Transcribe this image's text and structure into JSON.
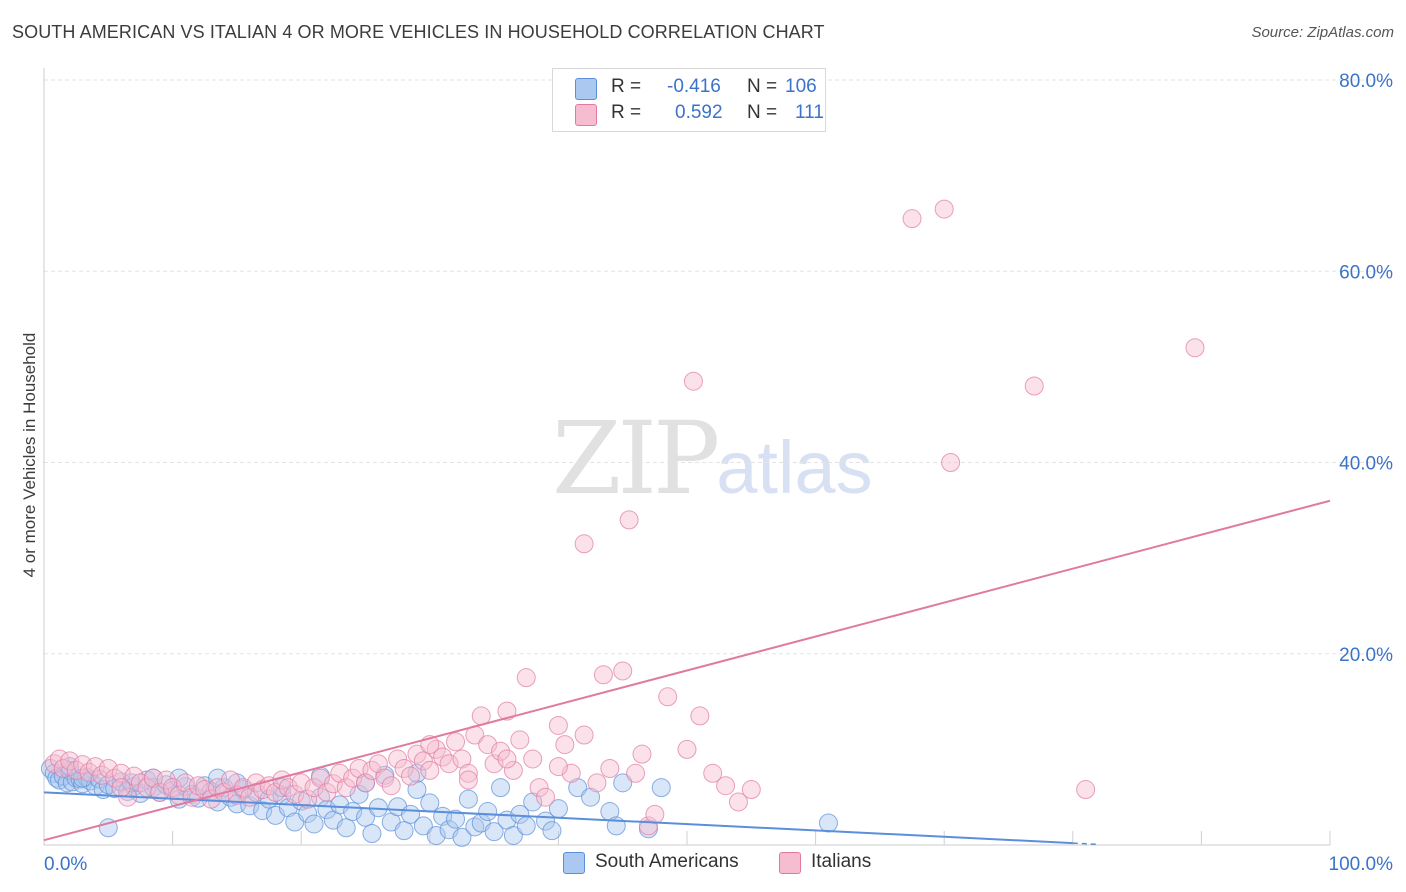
{
  "title": "SOUTH AMERICAN VS ITALIAN 4 OR MORE VEHICLES IN HOUSEHOLD CORRELATION CHART",
  "source": "Source: ZipAtlas.com",
  "watermark": {
    "zip": "ZIP",
    "atlas": "atlas"
  },
  "legend": {
    "rows": [
      {
        "r_label": "R =",
        "r_value": "-0.416",
        "n_label": "N =",
        "n_value": "106",
        "color": "#aac8f0"
      },
      {
        "r_label": "R =",
        "r_value": "0.592",
        "n_label": "N =",
        "n_value": "111",
        "color": "#f6bcd0"
      }
    ]
  },
  "bottom_legend": [
    {
      "label": "South Americans",
      "color": "#aac8f0"
    },
    {
      "label": "Italians",
      "color": "#f6bcd0"
    }
  ],
  "chart_data": {
    "type": "scatter",
    "title": "SOUTH AMERICAN VS ITALIAN 4 OR MORE VEHICLES IN HOUSEHOLD CORRELATION CHART",
    "xlabel": "",
    "ylabel": "4 or more Vehicles in Household",
    "xlim": [
      0,
      100
    ],
    "ylim": [
      0,
      80
    ],
    "x_tick_labels": [
      {
        "value": 0,
        "label": "0.0%"
      },
      {
        "value": 100,
        "label": "100.0%"
      }
    ],
    "y_tick_labels": [
      {
        "value": 20,
        "label": "20.0%"
      },
      {
        "value": 40,
        "label": "40.0%"
      },
      {
        "value": 60,
        "label": "60.0%"
      },
      {
        "value": 80,
        "label": "80.0%"
      }
    ],
    "grid": true,
    "legend_position": "top-center",
    "series": [
      {
        "name": "South Americans",
        "color": "#5b8fd9",
        "fill": "#aac8f0",
        "trend": {
          "x": [
            0,
            80
          ],
          "y": [
            5.5,
            0.2
          ]
        },
        "points": [
          [
            0.5,
            8.0
          ],
          [
            0.8,
            7.5
          ],
          [
            1.0,
            7.0
          ],
          [
            1.2,
            6.8
          ],
          [
            1.5,
            7.2
          ],
          [
            1.8,
            6.5
          ],
          [
            2.0,
            7.8
          ],
          [
            2.2,
            6.6
          ],
          [
            2.5,
            7.0
          ],
          [
            2.8,
            6.9
          ],
          [
            3.0,
            6.4
          ],
          [
            3.3,
            7.1
          ],
          [
            3.6,
            6.7
          ],
          [
            4.0,
            6.2
          ],
          [
            4.3,
            6.9
          ],
          [
            4.6,
            5.8
          ],
          [
            5.0,
            6.3
          ],
          [
            5.5,
            5.9
          ],
          [
            6.0,
            6.6
          ],
          [
            6.5,
            5.6
          ],
          [
            7.0,
            6.1
          ],
          [
            7.5,
            5.4
          ],
          [
            8.0,
            6.8
          ],
          [
            8.5,
            6.0
          ],
          [
            9.0,
            5.5
          ],
          [
            9.5,
            6.3
          ],
          [
            10.0,
            5.7
          ],
          [
            10.5,
            4.8
          ],
          [
            11.0,
            6.1
          ],
          [
            11.5,
            5.3
          ],
          [
            12.0,
            4.9
          ],
          [
            12.5,
            6.2
          ],
          [
            13.0,
            5.6
          ],
          [
            13.5,
            4.5
          ],
          [
            14.0,
            6.0
          ],
          [
            14.5,
            5.0
          ],
          [
            15.0,
            4.3
          ],
          [
            15.5,
            5.8
          ],
          [
            16.0,
            4.1
          ],
          [
            16.5,
            5.5
          ],
          [
            17.0,
            3.6
          ],
          [
            17.5,
            4.8
          ],
          [
            18.0,
            3.1
          ],
          [
            18.5,
            5.2
          ],
          [
            19.0,
            3.9
          ],
          [
            19.5,
            2.4
          ],
          [
            20.0,
            4.6
          ],
          [
            20.5,
            3.3
          ],
          [
            21.0,
            2.2
          ],
          [
            21.5,
            5.0
          ],
          [
            22.0,
            3.7
          ],
          [
            22.5,
            2.6
          ],
          [
            23.0,
            4.2
          ],
          [
            23.5,
            1.8
          ],
          [
            24.0,
            3.5
          ],
          [
            24.5,
            5.3
          ],
          [
            25.0,
            2.9
          ],
          [
            25.5,
            1.2
          ],
          [
            26.0,
            3.9
          ],
          [
            26.5,
            7.3
          ],
          [
            27.0,
            2.4
          ],
          [
            27.5,
            4.0
          ],
          [
            28.0,
            1.5
          ],
          [
            28.5,
            3.2
          ],
          [
            29.0,
            5.8
          ],
          [
            29.5,
            2.0
          ],
          [
            30.0,
            4.4
          ],
          [
            30.5,
            1.0
          ],
          [
            31.0,
            3.0
          ],
          [
            31.5,
            1.6
          ],
          [
            32.0,
            2.7
          ],
          [
            32.5,
            0.8
          ],
          [
            33.0,
            4.8
          ],
          [
            33.5,
            1.9
          ],
          [
            34.0,
            2.3
          ],
          [
            34.5,
            3.5
          ],
          [
            35.0,
            1.4
          ],
          [
            35.5,
            6.0
          ],
          [
            36.0,
            2.6
          ],
          [
            36.5,
            1.0
          ],
          [
            37.0,
            3.2
          ],
          [
            37.5,
            2.0
          ],
          [
            38.0,
            4.5
          ],
          [
            39.0,
            2.5
          ],
          [
            39.5,
            1.5
          ],
          [
            40.0,
            3.8
          ],
          [
            41.5,
            6.0
          ],
          [
            42.5,
            5.0
          ],
          [
            44.0,
            3.5
          ],
          [
            44.5,
            2.0
          ],
          [
            45.0,
            6.5
          ],
          [
            47.0,
            1.7
          ],
          [
            48.0,
            6.0
          ],
          [
            61.0,
            2.3
          ],
          [
            5.0,
            1.8
          ],
          [
            10.5,
            7.0
          ],
          [
            13.5,
            7.0
          ],
          [
            21.5,
            7.2
          ],
          [
            3.0,
            7.0
          ],
          [
            6.8,
            6.5
          ],
          [
            8.5,
            7.0
          ],
          [
            15.0,
            6.5
          ],
          [
            18.5,
            6.0
          ],
          [
            25.0,
            6.5
          ],
          [
            29.0,
            7.5
          ],
          [
            2.0,
            8.2
          ]
        ]
      },
      {
        "name": "Italians",
        "color": "#e07aa0",
        "fill": "#f6bcd0",
        "trend": {
          "x": [
            0,
            100
          ],
          "y": [
            0.5,
            36.0
          ]
        },
        "points": [
          [
            0.8,
            8.5
          ],
          [
            1.2,
            9.0
          ],
          [
            1.5,
            8.0
          ],
          [
            2.0,
            8.8
          ],
          [
            2.5,
            7.8
          ],
          [
            3.0,
            8.4
          ],
          [
            3.5,
            7.6
          ],
          [
            4.0,
            8.2
          ],
          [
            4.5,
            7.3
          ],
          [
            5.0,
            8.0
          ],
          [
            5.5,
            7.0
          ],
          [
            6.0,
            7.5
          ],
          [
            6.5,
            5.0
          ],
          [
            7.0,
            7.2
          ],
          [
            7.5,
            6.5
          ],
          [
            8.0,
            6.0
          ],
          [
            8.5,
            7.0
          ],
          [
            9.0,
            5.5
          ],
          [
            9.5,
            6.8
          ],
          [
            10.0,
            6.0
          ],
          [
            10.5,
            5.2
          ],
          [
            11.0,
            6.5
          ],
          [
            11.5,
            5.0
          ],
          [
            12.0,
            6.2
          ],
          [
            12.5,
            5.8
          ],
          [
            13.0,
            4.8
          ],
          [
            13.5,
            6.0
          ],
          [
            14.0,
            5.5
          ],
          [
            14.5,
            6.8
          ],
          [
            15.0,
            5.2
          ],
          [
            15.5,
            6.0
          ],
          [
            16.0,
            5.0
          ],
          [
            16.5,
            6.5
          ],
          [
            17.0,
            5.8
          ],
          [
            17.5,
            6.2
          ],
          [
            18.0,
            5.5
          ],
          [
            18.5,
            6.8
          ],
          [
            19.0,
            6.0
          ],
          [
            19.5,
            5.3
          ],
          [
            20.0,
            6.5
          ],
          [
            20.5,
            4.8
          ],
          [
            21.0,
            6.0
          ],
          [
            21.5,
            7.0
          ],
          [
            22.0,
            5.5
          ],
          [
            22.5,
            6.4
          ],
          [
            23.0,
            7.5
          ],
          [
            23.5,
            6.0
          ],
          [
            24.0,
            7.0
          ],
          [
            24.5,
            8.0
          ],
          [
            25.0,
            6.5
          ],
          [
            25.5,
            7.8
          ],
          [
            26.0,
            8.5
          ],
          [
            26.5,
            7.0
          ],
          [
            27.0,
            6.2
          ],
          [
            27.5,
            9.0
          ],
          [
            28.0,
            8.0
          ],
          [
            28.5,
            7.2
          ],
          [
            29.0,
            9.5
          ],
          [
            29.5,
            8.8
          ],
          [
            30.0,
            7.8
          ],
          [
            30.5,
            10.0
          ],
          [
            31.0,
            9.2
          ],
          [
            31.5,
            8.5
          ],
          [
            32.0,
            10.8
          ],
          [
            32.5,
            9.0
          ],
          [
            33.0,
            7.5
          ],
          [
            33.5,
            11.5
          ],
          [
            34.0,
            13.5
          ],
          [
            34.5,
            10.5
          ],
          [
            35.0,
            8.5
          ],
          [
            35.5,
            9.8
          ],
          [
            36.0,
            14.0
          ],
          [
            36.5,
            7.8
          ],
          [
            37.0,
            11.0
          ],
          [
            37.5,
            17.5
          ],
          [
            38.0,
            9.0
          ],
          [
            38.5,
            6.0
          ],
          [
            39.0,
            5.0
          ],
          [
            40.0,
            12.5
          ],
          [
            40.5,
            10.5
          ],
          [
            41.0,
            7.5
          ],
          [
            42.0,
            11.5
          ],
          [
            43.0,
            6.5
          ],
          [
            43.5,
            17.8
          ],
          [
            44.0,
            8.0
          ],
          [
            45.0,
            18.2
          ],
          [
            46.0,
            7.5
          ],
          [
            46.5,
            9.5
          ],
          [
            47.0,
            2.0
          ],
          [
            47.5,
            3.2
          ],
          [
            48.5,
            15.5
          ],
          [
            50.0,
            10.0
          ],
          [
            51.0,
            13.5
          ],
          [
            52.0,
            7.5
          ],
          [
            53.0,
            6.2
          ],
          [
            54.0,
            4.5
          ],
          [
            55.0,
            5.8
          ],
          [
            81.0,
            5.8
          ],
          [
            30.0,
            10.5
          ],
          [
            42.0,
            31.5
          ],
          [
            45.5,
            34.0
          ],
          [
            50.5,
            48.5
          ],
          [
            67.5,
            65.5
          ],
          [
            70.0,
            66.5
          ],
          [
            70.5,
            40.0
          ],
          [
            77.0,
            48.0
          ],
          [
            89.5,
            52.0
          ],
          [
            36.0,
            9.0
          ],
          [
            33.0,
            6.8
          ],
          [
            40.0,
            8.2
          ],
          [
            6.0,
            6.0
          ]
        ]
      }
    ]
  }
}
